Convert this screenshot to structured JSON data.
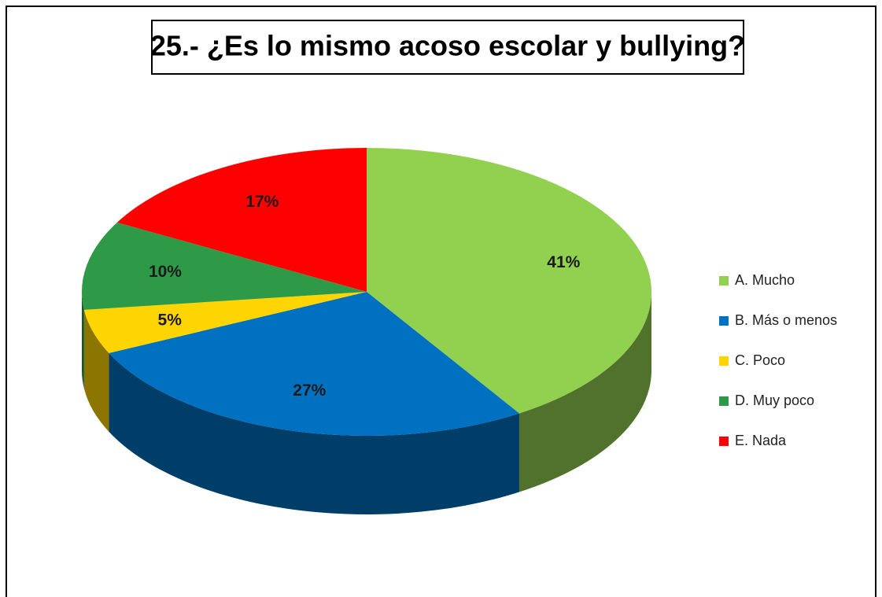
{
  "chart_data": {
    "type": "pie",
    "title": "25.- ¿Es lo mismo acoso escolar y bullying?",
    "categories": [
      "A. Mucho",
      "B. Más o menos",
      "C. Poco",
      "D. Muy poco",
      "E. Nada"
    ],
    "values": [
      41,
      27,
      5,
      10,
      17
    ],
    "value_labels": [
      "41%",
      "27%",
      "5%",
      "10%",
      "17%"
    ],
    "colors": [
      "#92d050",
      "#0070c0",
      "#ffd500",
      "#2e9a48",
      "#ff0000"
    ],
    "legend": "right"
  }
}
